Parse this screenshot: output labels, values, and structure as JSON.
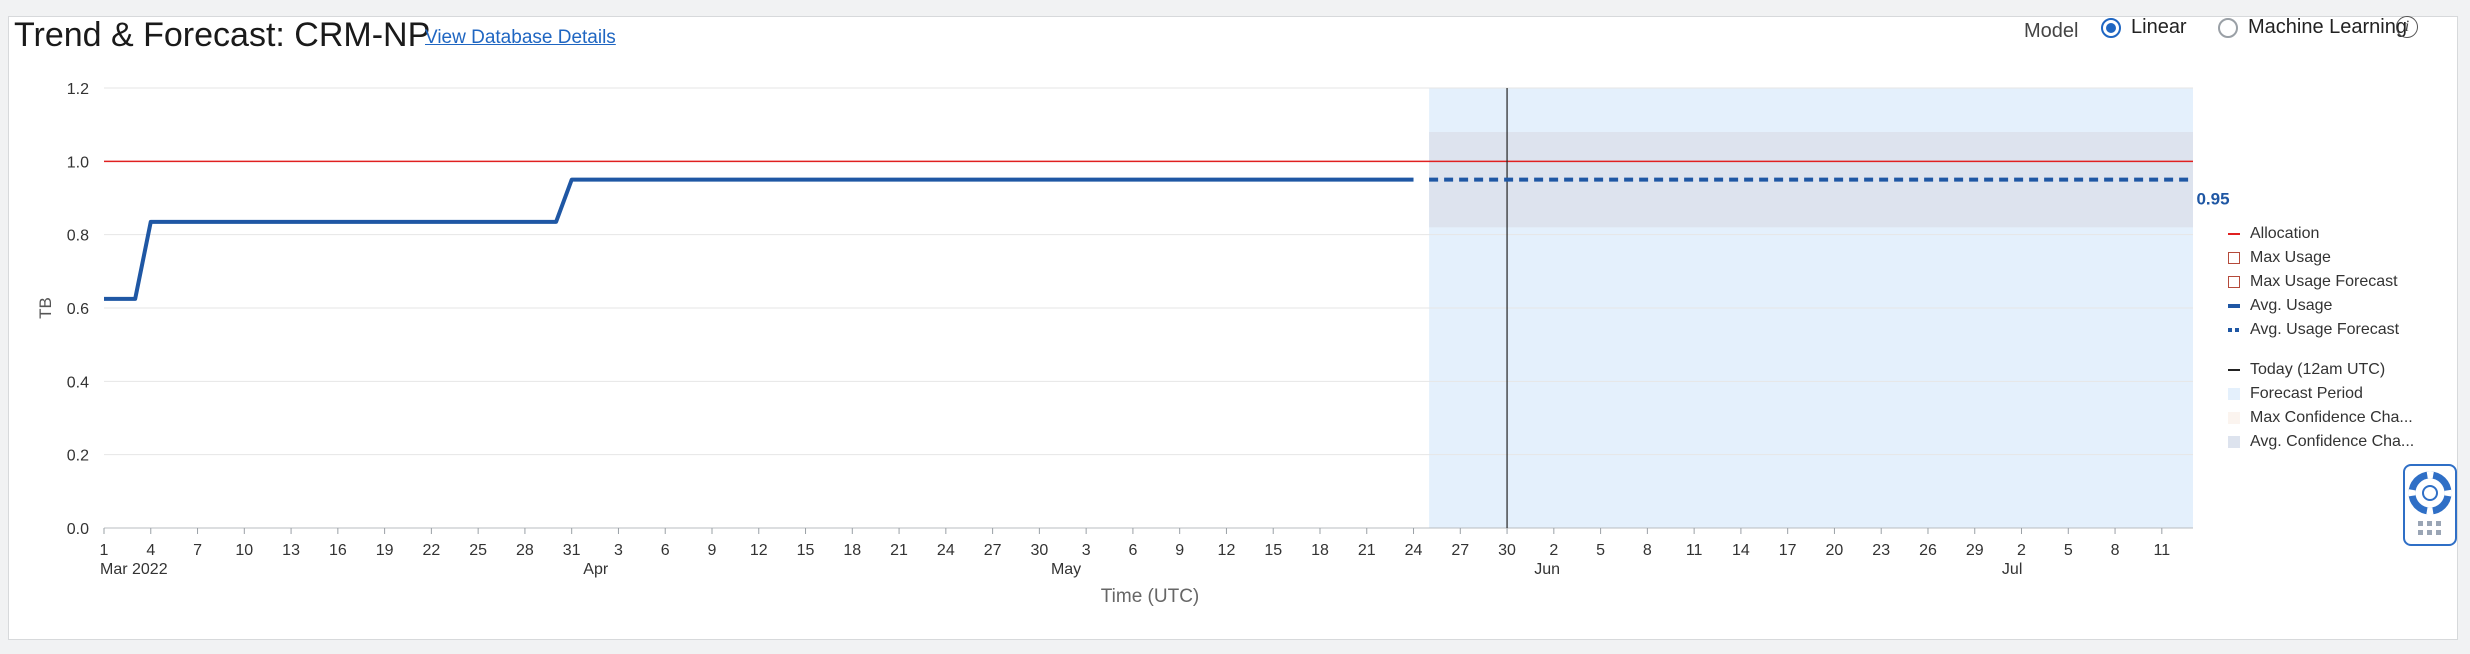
{
  "header": {
    "title": "Trend & Forecast: CRM-NP",
    "details_link": "View Database Details",
    "model_label": "Model",
    "model_options": [
      {
        "label": "Linear",
        "selected": true
      },
      {
        "label": "Machine Learning",
        "selected": false
      }
    ],
    "info_icon": "i"
  },
  "chart_data": {
    "type": "line",
    "ylabel": "TB",
    "xlabel": "Time (UTC)",
    "ylim": [
      0,
      1.2
    ],
    "yticks": [
      "0.0",
      "0.2",
      "0.4",
      "0.6",
      "0.8",
      "1.0",
      "1.2"
    ],
    "xticks": [
      "1",
      "4",
      "7",
      "10",
      "13",
      "16",
      "19",
      "22",
      "25",
      "28",
      "31",
      "3",
      "6",
      "9",
      "12",
      "15",
      "18",
      "21",
      "24",
      "27",
      "30",
      "3",
      "6",
      "9",
      "12",
      "15",
      "18",
      "21",
      "24",
      "27",
      "30",
      "2",
      "5",
      "8",
      "11",
      "14",
      "17",
      "20",
      "23",
      "26",
      "29",
      "2",
      "5",
      "8",
      "11"
    ],
    "month_labels": [
      "Mar 2022",
      "Apr",
      "May",
      "Jun",
      "Jul"
    ],
    "date_range": [
      "2022-03-01",
      "2022-07-13"
    ],
    "forecast_start": "2022-05-25",
    "today": "2022-05-30",
    "allocation": 1.0,
    "series": [
      {
        "name": "Avg. Usage",
        "points": [
          [
            "2022-03-01",
            0.625
          ],
          [
            "2022-03-03",
            0.625
          ],
          [
            "2022-03-04",
            0.835
          ],
          [
            "2022-03-30",
            0.835
          ],
          [
            "2022-03-31",
            0.95
          ],
          [
            "2022-05-24",
            0.95
          ]
        ]
      },
      {
        "name": "Avg. Usage Forecast",
        "points": [
          [
            "2022-05-25",
            0.95
          ],
          [
            "2022-07-13",
            0.95
          ]
        ]
      }
    ],
    "avg_confidence_band": [
      0.82,
      1.08
    ],
    "end_label": "0.95",
    "grid": true,
    "legend_position": "right",
    "colors": {
      "allocation": "#e02020",
      "avg_usage": "#1f57a4",
      "forecast_period": "#e4f0fc",
      "avg_confidence": "#dde3ee"
    }
  },
  "legend": {
    "items": [
      {
        "label": "Allocation",
        "swatch": "line",
        "color": "#e02020"
      },
      {
        "label": "Max Usage",
        "swatch": "box",
        "color": "#b54a3a"
      },
      {
        "label": "Max Usage Forecast",
        "swatch": "box",
        "color": "#b54a3a"
      },
      {
        "label": "Avg. Usage",
        "swatch": "thick",
        "color": "#1f57a4"
      },
      {
        "label": "Avg. Usage Forecast",
        "swatch": "dash",
        "color": "#1f57a4"
      },
      {
        "label": "Today (12am UTC)",
        "swatch": "line",
        "color": "#222222"
      },
      {
        "label": "Forecast Period",
        "swatch": "fill",
        "color": "#e4f0fc"
      },
      {
        "label": "Max Confidence Cha...",
        "swatch": "fill",
        "color": "#fbf4ef"
      },
      {
        "label": "Avg. Confidence Cha...",
        "swatch": "fill",
        "color": "#dde3ee"
      }
    ]
  },
  "help_widget": {
    "icon": "lifebuoy-icon"
  }
}
